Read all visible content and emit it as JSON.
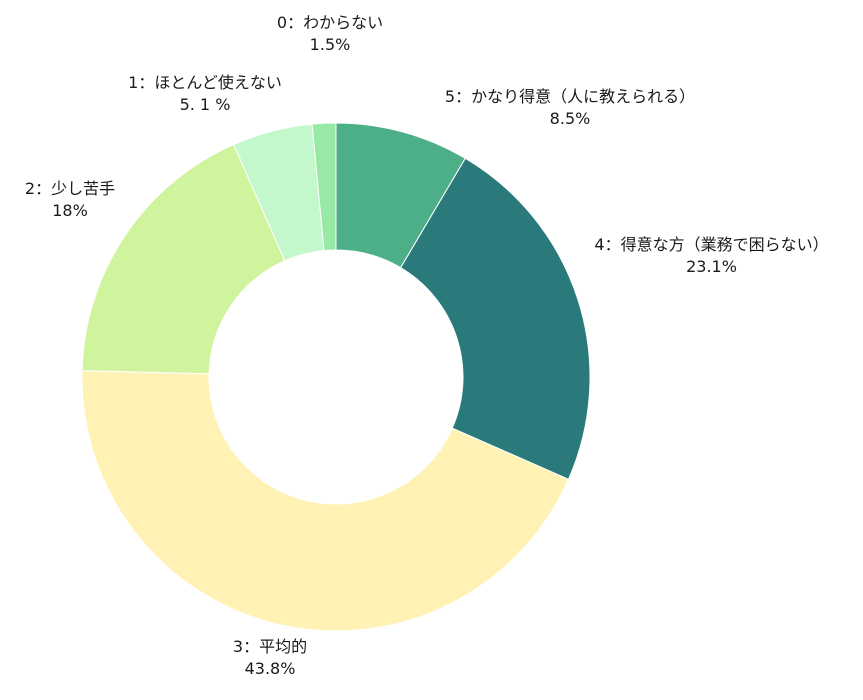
{
  "chart_data": {
    "type": "pie",
    "donut": true,
    "title": "",
    "legend": "none",
    "slices": [
      {
        "label": "5：かなり得意（人に教えられる）",
        "value": 8.5,
        "value_label": "8.5%",
        "color": "#4daf87"
      },
      {
        "label": "4：得意な方（業務で困らない）",
        "value": 23.1,
        "value_label": "23.1%",
        "color": "#2a7a7c"
      },
      {
        "label": "3：平均的",
        "value": 43.8,
        "value_label": "43.8%",
        "color": "#fff2b4"
      },
      {
        "label": "2：少し苦手",
        "value": 18,
        "value_label": "18%",
        "color": "#d0f49d"
      },
      {
        "label": "1：ほとんど使えない",
        "value": 5.1,
        "value_label": "5. 1 %",
        "color": "#c3f7cc"
      },
      {
        "label": "0：わからない",
        "value": 1.5,
        "value_label": "1.5%",
        "color": "#98e9a5"
      }
    ]
  }
}
